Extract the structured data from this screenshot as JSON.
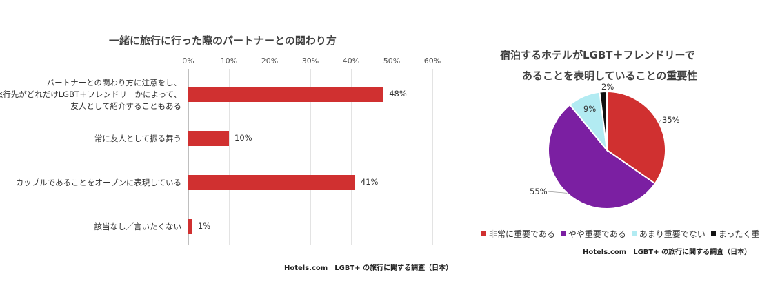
{
  "chart_data": [
    {
      "type": "bar",
      "orientation": "horizontal",
      "title": "一緒に旅行に行った際のパートナーとの関わり方",
      "categories": [
        [
          "パートナーとの関わり方に注意をし、",
          "旅行先がどれだけLGBT＋フレンドリーかによって、",
          "友人として紹介することもある"
        ],
        [
          "常に友人として振る舞う"
        ],
        [
          "カップルであることをオープンに表現している"
        ],
        [
          "該当なし／言いたくない"
        ]
      ],
      "values": [
        48,
        10,
        41,
        1
      ],
      "value_labels": [
        "48%",
        "10%",
        "41%",
        "1%"
      ],
      "xlim": [
        0,
        60
      ],
      "ticks": [
        "0%",
        "10%",
        "20%",
        "30%",
        "40%",
        "50%",
        "60%"
      ],
      "grid": true,
      "color": "#D03030"
    },
    {
      "type": "pie",
      "title_lines": [
        "宿泊するホテルがLGBT＋フレンドリーで",
        "あることを表明していることの重要性"
      ],
      "slices": [
        {
          "label": "非常に重要である",
          "value": 35,
          "display": "35%",
          "color": "#D03030"
        },
        {
          "label": "やや重要である",
          "value": 55,
          "display": "55%",
          "color": "#7B1FA2"
        },
        {
          "label": "あまり重要でない",
          "value": 9,
          "display": "9%",
          "color": "#B2EBF2"
        },
        {
          "label": "まったく重要でない",
          "value": 2,
          "display": "2%",
          "color": "#111111"
        }
      ],
      "legend_position": "bottom"
    }
  ],
  "source_left": "Hotels.com　LGBT+ の旅行に関する調査（日本）",
  "source_right": "Hotels.com　LGBT+ の旅行に関する調査（日本）"
}
